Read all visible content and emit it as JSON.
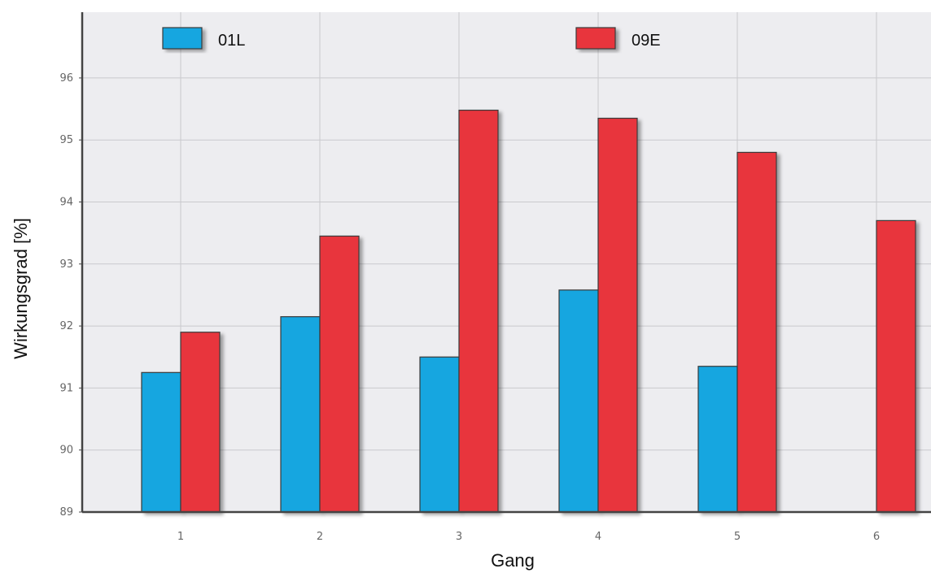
{
  "chart_data": {
    "type": "bar",
    "title": "",
    "xlabel": "Gang",
    "ylabel": "Wirkungsgrad [%]",
    "categories": [
      "1",
      "2",
      "3",
      "4",
      "5",
      "6"
    ],
    "ylim": [
      89,
      97
    ],
    "yticks": [
      "89",
      "90",
      "91",
      "92",
      "93",
      "94",
      "95",
      "96"
    ],
    "grid": true,
    "legend_position": "top",
    "series": [
      {
        "name": "01L",
        "color": "#12a6e0",
        "values": [
          91.25,
          92.15,
          91.5,
          92.58,
          91.35,
          null
        ]
      },
      {
        "name": "09E",
        "color": "#e8343d",
        "values": [
          91.9,
          93.45,
          95.48,
          95.35,
          94.8,
          93.7
        ]
      }
    ]
  }
}
